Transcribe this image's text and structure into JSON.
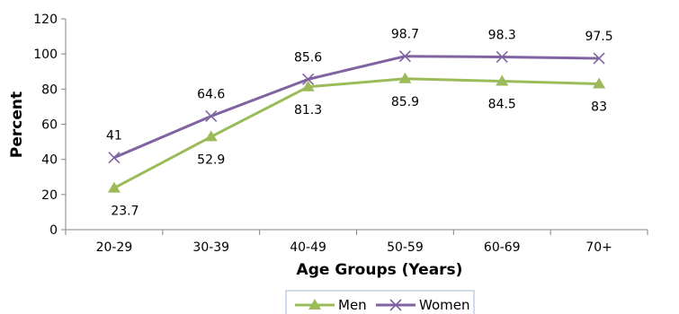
{
  "chart_data": {
    "type": "line",
    "title": "",
    "xlabel": "Age Groups (Years)",
    "ylabel": "Percent",
    "categories": [
      "20-29",
      "30-39",
      "40-49",
      "50-59",
      "60-69",
      "70+"
    ],
    "ylim": [
      0,
      120
    ],
    "yticks": [
      "0",
      "20",
      "40",
      "60",
      "80",
      "100",
      "120"
    ],
    "grid": false,
    "legend_position": "bottom",
    "series": [
      {
        "name": "Men",
        "values": [
          23.7,
          52.9,
          81.3,
          85.9,
          84.5,
          83
        ],
        "labels": [
          "23.7",
          "52.9",
          "81.3",
          "85.9",
          "84.5",
          "83"
        ],
        "color": "#9BBB59",
        "marker": "triangle"
      },
      {
        "name": "Women",
        "values": [
          41,
          64.6,
          85.6,
          98.7,
          98.3,
          97.5
        ],
        "labels": [
          "41",
          "64.6",
          "85.6",
          "98.7",
          "98.3",
          "97.5"
        ],
        "color": "#8064A2",
        "marker": "x"
      }
    ]
  }
}
